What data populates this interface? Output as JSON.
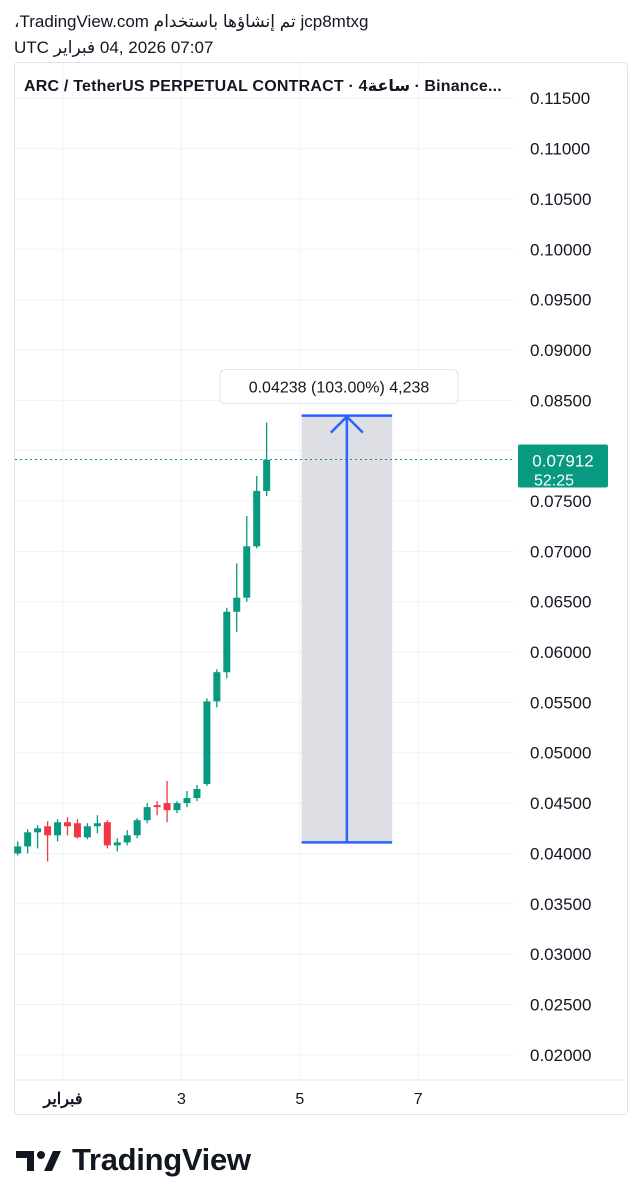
{
  "header": {
    "line1": "jcp8mtxg تم إنشاؤها باستخدام TradingView.com،",
    "line2": "07:07 2026 ,04 فبراير UTC"
  },
  "chart_title": "ARC / TetherUS PERPETUAL CONTRACT · 4ساعة · Binance...",
  "brand": "TradingView",
  "measure_label": "0.04238 (103.00%) 4,238",
  "current_price": {
    "price": "0.07912",
    "countdown": "52:25",
    "value": 0.07912,
    "color": "#089981"
  },
  "colors": {
    "up": "#089981",
    "down": "#f23645",
    "measure": "#2962ff",
    "grid": "#f0f3fa"
  },
  "chart_data": {
    "type": "candlestick",
    "title": "ARC / TetherUS PERPETUAL CONTRACT · 4ساعة · Binance...",
    "ylim": [
      0.0175,
      0.1185
    ],
    "y_ticks": [
      "0.11500",
      "0.11000",
      "0.10500",
      "0.10000",
      "0.09500",
      "0.09000",
      "0.08500",
      "0.08000",
      "0.07500",
      "0.07000",
      "0.06500",
      "0.06000",
      "0.05500",
      "0.05000",
      "0.04500",
      "0.04000",
      "0.03500",
      "0.03000",
      "0.02500",
      "0.02000"
    ],
    "x_ticks": [
      {
        "label": "فبراير",
        "day": 1
      },
      {
        "label": "3",
        "day": 3
      },
      {
        "label": "5",
        "day": 5
      },
      {
        "label": "7",
        "day": 7
      }
    ],
    "candles": [
      {
        "day": 0.235,
        "o": 0.04,
        "h": 0.0412,
        "l": 0.0398,
        "c": 0.0407
      },
      {
        "day": 0.403,
        "o": 0.0407,
        "h": 0.0424,
        "l": 0.04,
        "c": 0.0421
      },
      {
        "day": 0.571,
        "o": 0.0421,
        "h": 0.0428,
        "l": 0.0405,
        "c": 0.0425
      },
      {
        "day": 0.74,
        "o": 0.0427,
        "h": 0.0432,
        "l": 0.0392,
        "c": 0.0418
      },
      {
        "day": 0.908,
        "o": 0.0418,
        "h": 0.0434,
        "l": 0.0412,
        "c": 0.0431
      },
      {
        "day": 1.076,
        "o": 0.0431,
        "h": 0.0436,
        "l": 0.0418,
        "c": 0.0427
      },
      {
        "day": 1.244,
        "o": 0.043,
        "h": 0.0434,
        "l": 0.0415,
        "c": 0.0416
      },
      {
        "day": 1.412,
        "o": 0.0416,
        "h": 0.043,
        "l": 0.0414,
        "c": 0.0427
      },
      {
        "day": 1.581,
        "o": 0.0427,
        "h": 0.0438,
        "l": 0.042,
        "c": 0.043
      },
      {
        "day": 1.749,
        "o": 0.0431,
        "h": 0.0433,
        "l": 0.0405,
        "c": 0.0408
      },
      {
        "day": 1.917,
        "o": 0.0408,
        "h": 0.0415,
        "l": 0.0402,
        "c": 0.0411
      },
      {
        "day": 2.085,
        "o": 0.0411,
        "h": 0.0423,
        "l": 0.0408,
        "c": 0.0418
      },
      {
        "day": 2.253,
        "o": 0.0418,
        "h": 0.0435,
        "l": 0.0415,
        "c": 0.0433
      },
      {
        "day": 2.422,
        "o": 0.0433,
        "h": 0.045,
        "l": 0.043,
        "c": 0.0446
      },
      {
        "day": 2.59,
        "o": 0.0448,
        "h": 0.0452,
        "l": 0.0438,
        "c": 0.0446
      },
      {
        "day": 2.758,
        "o": 0.045,
        "h": 0.0472,
        "l": 0.0431,
        "c": 0.0443
      },
      {
        "day": 2.926,
        "o": 0.0443,
        "h": 0.0452,
        "l": 0.044,
        "c": 0.045
      },
      {
        "day": 3.094,
        "o": 0.045,
        "h": 0.0462,
        "l": 0.0446,
        "c": 0.0455
      },
      {
        "day": 3.263,
        "o": 0.0455,
        "h": 0.0468,
        "l": 0.0452,
        "c": 0.0464
      },
      {
        "day": 3.431,
        "o": 0.0469,
        "h": 0.0554,
        "l": 0.0467,
        "c": 0.0551
      },
      {
        "day": 3.599,
        "o": 0.0551,
        "h": 0.0583,
        "l": 0.0545,
        "c": 0.058
      },
      {
        "day": 3.767,
        "o": 0.058,
        "h": 0.0644,
        "l": 0.0574,
        "c": 0.064
      },
      {
        "day": 3.935,
        "o": 0.064,
        "h": 0.0688,
        "l": 0.062,
        "c": 0.0654
      },
      {
        "day": 4.104,
        "o": 0.0654,
        "h": 0.0735,
        "l": 0.065,
        "c": 0.0705
      },
      {
        "day": 4.272,
        "o": 0.0705,
        "h": 0.0775,
        "l": 0.0703,
        "c": 0.076
      },
      {
        "day": 4.44,
        "o": 0.076,
        "h": 0.0828,
        "l": 0.0755,
        "c": 0.0791
      }
    ],
    "measure": {
      "from": 0.0411,
      "to": 0.08348,
      "day_start": 5.03,
      "day_end": 6.56,
      "change": 0.04238,
      "percent": "103.00%",
      "ticks": "4,238"
    }
  }
}
